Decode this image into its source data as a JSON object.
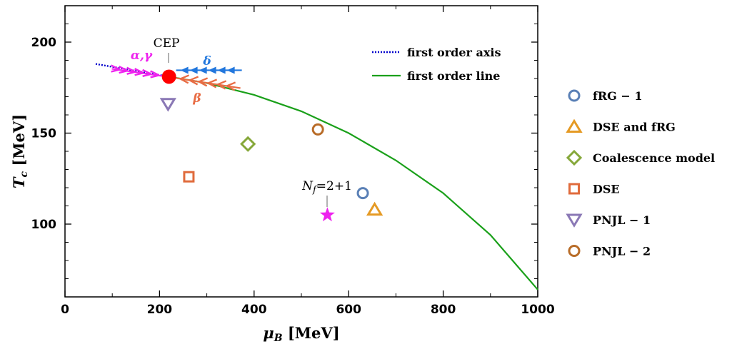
{
  "chart_data": {
    "type": "scatter",
    "xlabel_main": "μ",
    "xlabel_sub": "B",
    "xlabel_unit": " [MeV]",
    "ylabel_main": "T",
    "ylabel_sub": "c",
    "ylabel_unit": " [MeV]",
    "xlim": [
      0,
      1000
    ],
    "ylim": [
      60,
      220
    ],
    "xticks": [
      0,
      200,
      400,
      600,
      800,
      1000
    ],
    "yticks": [
      100,
      150,
      200
    ],
    "grid": false,
    "legend_position": "top-right",
    "cep": {
      "label": "CEP",
      "x": 220,
      "y": 181,
      "color": "#ff0000"
    },
    "first_order_axis": {
      "name": "first order axis",
      "color": "#0000cc",
      "x": [
        65,
        220
      ],
      "y": [
        188,
        181
      ]
    },
    "first_order_line": {
      "name": "first order line",
      "color": "#1aa01a",
      "x": [
        220,
        300,
        400,
        500,
        600,
        700,
        800,
        900,
        1000
      ],
      "y": [
        181,
        177.5,
        171,
        162,
        150,
        135,
        117,
        94,
        64
      ]
    },
    "direction_labels": [
      {
        "id": "alpha-gamma",
        "text": "α,γ",
        "color": "#ee22ee"
      },
      {
        "id": "delta",
        "text": "δ",
        "color": "#2277dd"
      },
      {
        "id": "beta",
        "text": "β",
        "color": "#e86c44"
      }
    ],
    "series": [
      {
        "name": "fRG − 1",
        "marker": "circle",
        "color": "#5a80b6",
        "x": 630,
        "y": 117
      },
      {
        "name": "DSE and fRG",
        "marker": "triangle-up",
        "color": "#e59a24",
        "x": 655,
        "y": 108
      },
      {
        "name": "Coalescence model",
        "marker": "diamond",
        "color": "#86a83a",
        "x": 387,
        "y": 144
      },
      {
        "name": "DSE",
        "marker": "square",
        "color": "#e06b3c",
        "x": 262,
        "y": 126
      },
      {
        "name": "PNJL − 1",
        "marker": "triangle-down",
        "color": "#8a78b5",
        "x": 218,
        "y": 166
      },
      {
        "name": "PNJL − 2",
        "marker": "circle",
        "color": "#b86c28",
        "x": 535,
        "y": 152
      }
    ],
    "star": {
      "label": "N",
      "label_sub": "f",
      "label_rest": "=2+1",
      "x": 555,
      "y": 105,
      "color": "#ee22ee"
    }
  }
}
